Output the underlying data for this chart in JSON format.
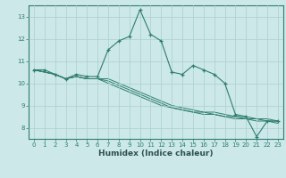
{
  "xlabel": "Humidex (Indice chaleur)",
  "ylabel": "",
  "bg_color": "#cce8e8",
  "line_color": "#2e7d6e",
  "grid_color": "#aacfcf",
  "xlim": [
    -0.5,
    23.5
  ],
  "ylim": [
    7.5,
    13.5
  ],
  "x_ticks": [
    0,
    1,
    2,
    3,
    4,
    5,
    6,
    7,
    8,
    9,
    10,
    11,
    12,
    13,
    14,
    15,
    16,
    17,
    18,
    19,
    20,
    21,
    22,
    23
  ],
  "y_ticks": [
    8,
    9,
    10,
    11,
    12,
    13
  ],
  "main_line": [
    10.6,
    10.6,
    10.4,
    10.2,
    10.4,
    10.3,
    10.3,
    11.5,
    11.9,
    12.1,
    13.3,
    12.2,
    11.9,
    10.5,
    10.4,
    10.8,
    10.6,
    10.4,
    10.0,
    8.6,
    8.5,
    7.6,
    8.3,
    8.3
  ],
  "band_lines": [
    [
      10.6,
      10.5,
      10.4,
      10.2,
      10.3,
      10.2,
      10.2,
      10.2,
      10.0,
      9.8,
      9.6,
      9.4,
      9.2,
      9.0,
      8.9,
      8.8,
      8.7,
      8.7,
      8.6,
      8.5,
      8.5,
      8.4,
      8.4,
      8.3
    ],
    [
      10.6,
      10.5,
      10.4,
      10.2,
      10.3,
      10.2,
      10.2,
      10.1,
      9.9,
      9.7,
      9.5,
      9.3,
      9.1,
      8.9,
      8.8,
      8.7,
      8.7,
      8.6,
      8.5,
      8.5,
      8.4,
      8.4,
      8.3,
      8.3
    ],
    [
      10.6,
      10.5,
      10.4,
      10.2,
      10.3,
      10.2,
      10.2,
      10.0,
      9.8,
      9.6,
      9.4,
      9.2,
      9.0,
      8.9,
      8.8,
      8.7,
      8.6,
      8.6,
      8.5,
      8.4,
      8.4,
      8.3,
      8.3,
      8.2
    ]
  ],
  "spine_color": "#2e7d6e",
  "tick_color": "#2e7d6e",
  "label_color": "#2e5050"
}
